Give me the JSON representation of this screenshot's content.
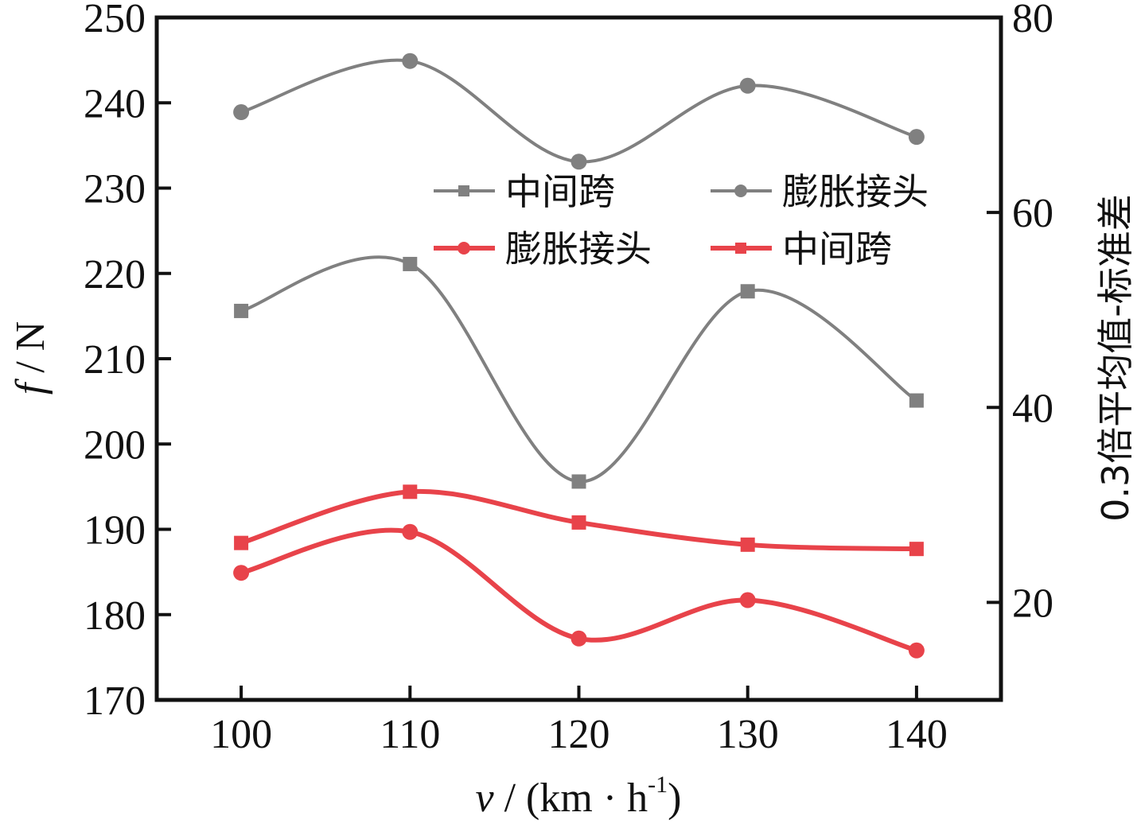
{
  "chart_data": {
    "type": "line",
    "title": "",
    "xlabel": "v / (km · h⁻¹)",
    "xlabel_parts": {
      "var": "v",
      "rest": " / (km · h",
      "sup": "-1",
      "close": ")"
    },
    "ylabel": "f / N",
    "ylabel_parts": {
      "var": "f",
      "rest": " / N"
    },
    "y2label": "0.3倍平均值-标准差",
    "x": [
      100,
      110,
      120,
      130,
      140
    ],
    "xlim": [
      95,
      145
    ],
    "ylim": [
      170,
      250
    ],
    "y2lim": [
      10,
      80
    ],
    "xticks": [
      "100",
      "110",
      "120",
      "130",
      "140"
    ],
    "yticks": [
      "170",
      "180",
      "190",
      "200",
      "210",
      "220",
      "230",
      "240",
      "250"
    ],
    "y2ticks": [
      "20",
      "40",
      "60",
      "80"
    ],
    "y2tick_values": [
      20,
      40,
      60,
      80
    ],
    "ytick_values": [
      170,
      180,
      190,
      200,
      210,
      220,
      230,
      240,
      250
    ],
    "grid": false,
    "legend_position": "upper-center",
    "smooth": true,
    "series": [
      {
        "name": "中间跨",
        "color": "#808080",
        "marker": "square",
        "axis": "left",
        "values": [
          215.6,
          221.1,
          195.6,
          217.9,
          205.1
        ]
      },
      {
        "name": "膨胀接头",
        "color": "#808080",
        "marker": "circle",
        "axis": "left",
        "values": [
          238.9,
          244.9,
          233.1,
          242.0,
          236.0
        ]
      },
      {
        "name": "膨胀接头",
        "color": "#e8434a",
        "marker": "circle",
        "axis": "left",
        "values": [
          184.9,
          189.7,
          177.2,
          181.7,
          175.8
        ]
      },
      {
        "name": "中间跨",
        "color": "#e8434a",
        "marker": "square",
        "axis": "left",
        "values": [
          188.4,
          194.4,
          190.8,
          188.2,
          187.7
        ]
      }
    ],
    "legend": [
      {
        "label": "中间跨",
        "color": "#808080",
        "marker": "square"
      },
      {
        "label": "膨胀接头",
        "color": "#808080",
        "marker": "circle"
      },
      {
        "label": "膨胀接头",
        "color": "#e8434a",
        "marker": "circle"
      },
      {
        "label": "中间跨",
        "color": "#e8434a",
        "marker": "square"
      }
    ]
  }
}
